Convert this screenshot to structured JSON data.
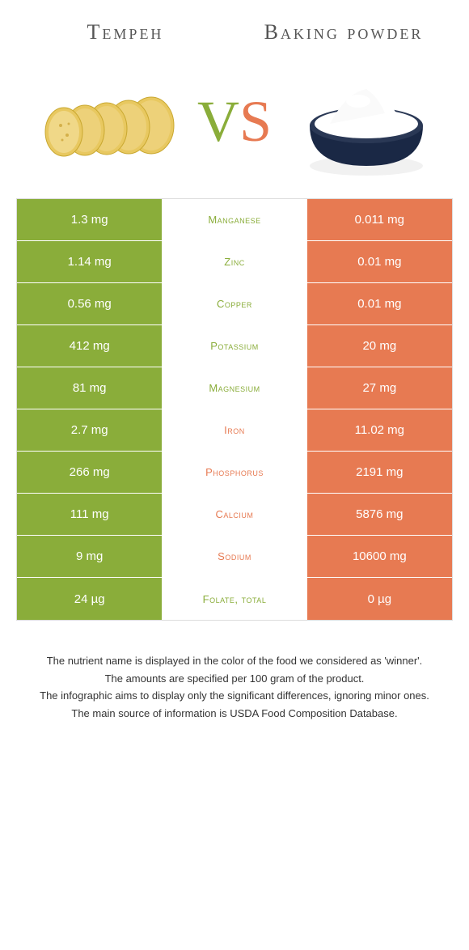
{
  "header": {
    "left": "Tempeh",
    "right": "Baking powder"
  },
  "colors": {
    "green": "#8aad3a",
    "orange": "#e77a52"
  },
  "rows": [
    {
      "left": "1.3 mg",
      "mid": "Manganese",
      "right": "0.011 mg",
      "winner": "left"
    },
    {
      "left": "1.14 mg",
      "mid": "Zinc",
      "right": "0.01 mg",
      "winner": "left"
    },
    {
      "left": "0.56 mg",
      "mid": "Copper",
      "right": "0.01 mg",
      "winner": "left"
    },
    {
      "left": "412 mg",
      "mid": "Potassium",
      "right": "20 mg",
      "winner": "left"
    },
    {
      "left": "81 mg",
      "mid": "Magnesium",
      "right": "27 mg",
      "winner": "left"
    },
    {
      "left": "2.7 mg",
      "mid": "Iron",
      "right": "11.02 mg",
      "winner": "right"
    },
    {
      "left": "266 mg",
      "mid": "Phosphorus",
      "right": "2191 mg",
      "winner": "right"
    },
    {
      "left": "111 mg",
      "mid": "Calcium",
      "right": "5876 mg",
      "winner": "right"
    },
    {
      "left": "9 mg",
      "mid": "Sodium",
      "right": "10600 mg",
      "winner": "right"
    },
    {
      "left": "24 µg",
      "mid": "Folate, total",
      "right": "0 µg",
      "winner": "left"
    }
  ],
  "footnotes": [
    "The nutrient name is displayed in the color of the food we considered as 'winner'.",
    "The amounts are specified per 100 gram of the product.",
    "The infographic aims to display only the significant differences, ignoring minor ones.",
    "The main source of information is USDA Food Composition Database."
  ]
}
